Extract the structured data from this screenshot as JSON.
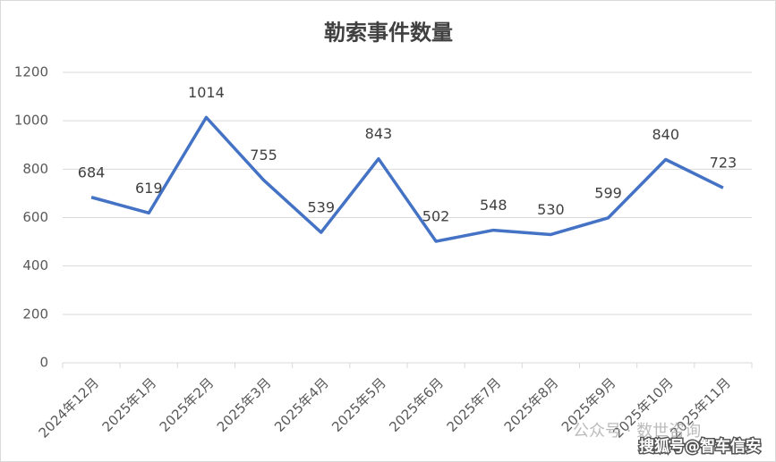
{
  "chart_data": {
    "type": "line",
    "title": "勒索事件数量",
    "categories": [
      "2024年12月",
      "2025年1月",
      "2025年2月",
      "2025年3月",
      "2025年4月",
      "2025年5月",
      "2025年6月",
      "2025年7月",
      "2025年8月",
      "2025年9月",
      "2025年10月",
      "2025年11月"
    ],
    "values": [
      684,
      619,
      1014,
      755,
      539,
      843,
      502,
      548,
      530,
      599,
      840,
      723
    ],
    "color": "#4472c4",
    "ylim": [
      0,
      1200
    ],
    "yticks": [
      0,
      200,
      400,
      600,
      800,
      1000,
      1200
    ],
    "grid": true,
    "watermarks": [
      "公众号 · 数世咨询",
      "搜狐号@智车信安"
    ]
  }
}
